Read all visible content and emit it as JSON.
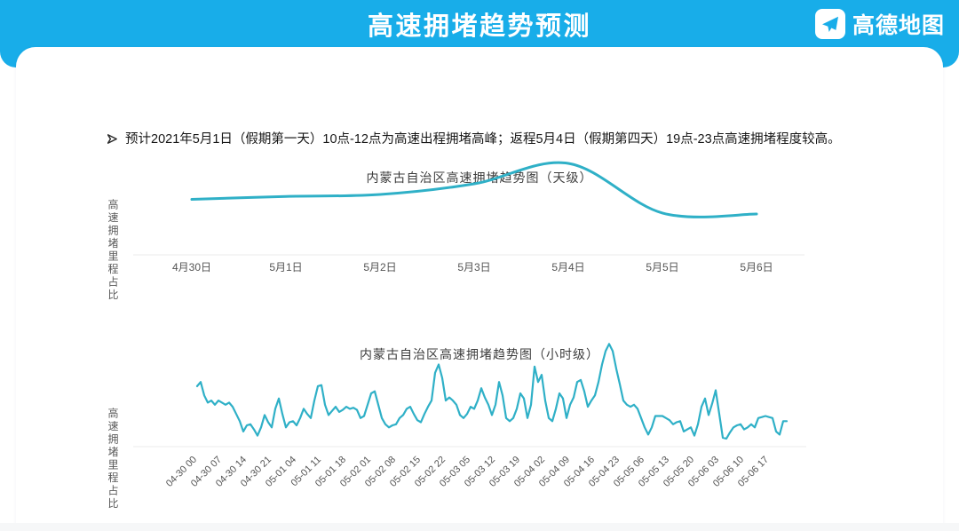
{
  "page": {
    "accent_color": "#18ade9",
    "card_color": "#ffffff",
    "footer_bar_color": "#f6f7f8"
  },
  "header": {
    "title": "高速拥堵趋势预测",
    "brand_name": "高德地图",
    "brand_icon": "paper-plane-icon",
    "bg_color": "#18ade9",
    "text_color": "#ffffff"
  },
  "summary": {
    "marker_icon": "arrowhead-right-icon",
    "marker_glyph": "➢",
    "text": "预计2021年5月1日（假期第一天）10点-12点为高速出程拥堵高峰；返程5月4日（假期第四天）19点-23点高速拥堵程度较高。"
  },
  "chart_data": [
    {
      "id": "daily",
      "type": "line",
      "title": "内蒙古自治区高速拥堵趋势图（天级）",
      "xlabel": "",
      "ylabel": "高速拥堵里程占比",
      "categories": [
        "4月30日",
        "5月1日",
        "5月2日",
        "5月3日",
        "5月4日",
        "5月5日",
        "5月6日"
      ],
      "values": [
        57,
        60,
        62,
        73,
        94,
        43,
        42
      ],
      "y_axis": {
        "tick_labels_visible": false,
        "normalized_scale": [
          0,
          100
        ]
      },
      "grid": false,
      "legend": "none",
      "smooth": true,
      "line_color": "#2fb0c7",
      "note": "曲线峰值出现在5月4日附近"
    },
    {
      "id": "hourly",
      "type": "line",
      "title": "内蒙古自治区高速拥堵趋势图（小时级）",
      "xlabel": "",
      "ylabel": "高速拥堵里程占比",
      "x_start": "04-30 00",
      "hours_per_tick": 7,
      "x_tick_labels": [
        "04-30 00",
        "04-30 07",
        "04-30 14",
        "04-30 21",
        "05-01 04",
        "05-01 11",
        "05-01 18",
        "05-02 01",
        "05-02 08",
        "05-02 15",
        "05-02 22",
        "05-03 05",
        "05-03 12",
        "05-03 19",
        "05-04 02",
        "05-04 09",
        "05-04 16",
        "05-04 23",
        "05-05 06",
        "05-05 13",
        "05-05 20",
        "05-06 03",
        "05-06 10",
        "05-06 17"
      ],
      "values": [
        57,
        61,
        48,
        41,
        43,
        39,
        43,
        41,
        39,
        41,
        37,
        30,
        23,
        13,
        19,
        20,
        15,
        9,
        17,
        29,
        22,
        17,
        35,
        45,
        30,
        17,
        22,
        23,
        19,
        26,
        35,
        30,
        26,
        43,
        57,
        58,
        39,
        29,
        33,
        37,
        32,
        34,
        37,
        35,
        36,
        34,
        26,
        28,
        39,
        50,
        52,
        39,
        26,
        20,
        17,
        19,
        20,
        26,
        29,
        35,
        37,
        30,
        24,
        22,
        30,
        37,
        43,
        70,
        78,
        65,
        43,
        46,
        43,
        39,
        29,
        26,
        30,
        37,
        35,
        43,
        55,
        46,
        39,
        29,
        39,
        61,
        48,
        26,
        23,
        26,
        35,
        50,
        45,
        26,
        39,
        76,
        61,
        68,
        43,
        26,
        23,
        35,
        50,
        45,
        26,
        39,
        46,
        61,
        63,
        52,
        37,
        43,
        48,
        61,
        78,
        91,
        98,
        91,
        74,
        59,
        43,
        39,
        37,
        39,
        35,
        26,
        17,
        10,
        17,
        28,
        28,
        28,
        26,
        24,
        20,
        22,
        23,
        13,
        15,
        17,
        9,
        20,
        37,
        45,
        29,
        40,
        53,
        30,
        7,
        6,
        12,
        17,
        19,
        20,
        15,
        17,
        20,
        17,
        26,
        27,
        28,
        27,
        26,
        13,
        10,
        23,
        23
      ],
      "y_axis": {
        "tick_labels_visible": false,
        "normalized_scale": [
          0,
          100
        ]
      },
      "grid": false,
      "legend": "none",
      "smooth": false,
      "line_color": "#2fb0c7",
      "note": "最高峰出现在05-04 20时前后"
    }
  ]
}
